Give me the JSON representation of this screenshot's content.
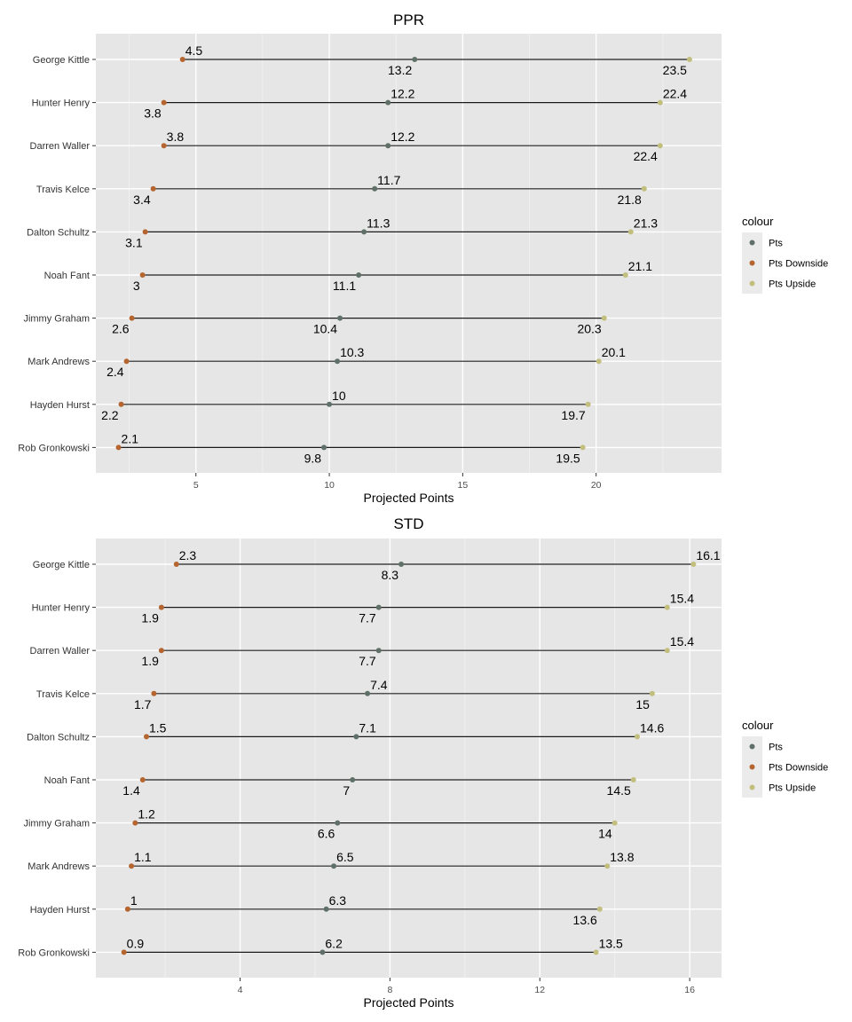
{
  "chart_data": [
    {
      "type": "dumbbell",
      "title": "PPR",
      "xlabel": "Projected Points",
      "ylabel": "",
      "xlim": [
        1.25,
        24.7
      ],
      "xticks": [
        5,
        10,
        15,
        20
      ],
      "grid": true,
      "legend_position": "right",
      "legend_title": "colour",
      "categories": [
        "George Kittle",
        "Hunter Henry",
        "Darren Waller",
        "Travis Kelce",
        "Dalton Schultz",
        "Noah Fant",
        "Jimmy Graham",
        "Mark Andrews",
        "Hayden Hurst",
        "Rob Gronkowski"
      ],
      "series": [
        {
          "name": "Pts",
          "color": "#5f7068",
          "values": [
            13.2,
            12.2,
            12.2,
            11.7,
            11.3,
            11.1,
            10.4,
            10.3,
            10.0,
            9.8
          ],
          "labels": [
            "13.2",
            "12.2",
            "12.2",
            "11.7",
            "11.3",
            "11.1",
            "10.4",
            "10.3",
            "10",
            "9.8"
          ],
          "label_side": [
            "below",
            "above",
            "above",
            "above",
            "above",
            "below",
            "below",
            "above",
            "above",
            "below"
          ]
        },
        {
          "name": "Pts Downside",
          "color": "#b5652f",
          "values": [
            4.5,
            3.8,
            3.8,
            3.4,
            3.1,
            3.0,
            2.6,
            2.4,
            2.2,
            2.1
          ],
          "labels": [
            "4.5",
            "3.8",
            "3.8",
            "3.4",
            "3.1",
            "3",
            "2.6",
            "2.4",
            "2.2",
            "2.1"
          ],
          "label_side": [
            "above",
            "below",
            "above",
            "below",
            "below",
            "below",
            "below",
            "below",
            "below",
            "above"
          ]
        },
        {
          "name": "Pts Upside",
          "color": "#c2bf7e",
          "values": [
            23.5,
            22.4,
            22.4,
            21.8,
            21.3,
            21.1,
            20.3,
            20.1,
            19.7,
            19.5
          ],
          "labels": [
            "23.5",
            "22.4",
            "22.4",
            "21.8",
            "21.3",
            "21.1",
            "20.3",
            "20.1",
            "19.7",
            "19.5"
          ],
          "label_side": [
            "below",
            "above",
            "below",
            "below",
            "above",
            "above",
            "below",
            "above",
            "below",
            "below"
          ]
        }
      ]
    },
    {
      "type": "dumbbell",
      "title": "STD",
      "xlabel": "Projected Points",
      "ylabel": "",
      "xlim": [
        0.15,
        16.85
      ],
      "xticks": [
        4,
        8,
        12,
        16
      ],
      "grid": true,
      "legend_position": "right",
      "legend_title": "colour",
      "categories": [
        "George Kittle",
        "Hunter Henry",
        "Darren Waller",
        "Travis Kelce",
        "Dalton Schultz",
        "Noah Fant",
        "Jimmy Graham",
        "Mark Andrews",
        "Hayden Hurst",
        "Rob Gronkowski"
      ],
      "series": [
        {
          "name": "Pts",
          "color": "#5f7068",
          "values": [
            8.3,
            7.7,
            7.7,
            7.4,
            7.1,
            7.0,
            6.6,
            6.5,
            6.3,
            6.2
          ],
          "labels": [
            "8.3",
            "7.7",
            "7.7",
            "7.4",
            "7.1",
            "7",
            "6.6",
            "6.5",
            "6.3",
            "6.2"
          ],
          "label_side": [
            "below",
            "below",
            "below",
            "above",
            "above",
            "below",
            "below",
            "above",
            "above",
            "above"
          ]
        },
        {
          "name": "Pts Downside",
          "color": "#b5652f",
          "values": [
            2.3,
            1.9,
            1.9,
            1.7,
            1.5,
            1.4,
            1.2,
            1.1,
            1.0,
            0.9
          ],
          "labels": [
            "2.3",
            "1.9",
            "1.9",
            "1.7",
            "1.5",
            "1.4",
            "1.2",
            "1.1",
            "1",
            "0.9"
          ],
          "label_side": [
            "above",
            "below",
            "below",
            "below",
            "above",
            "below",
            "above",
            "above",
            "above",
            "above"
          ]
        },
        {
          "name": "Pts Upside",
          "color": "#c2bf7e",
          "values": [
            16.1,
            15.4,
            15.4,
            15.0,
            14.6,
            14.5,
            14.0,
            13.8,
            13.6,
            13.5
          ],
          "labels": [
            "16.1",
            "15.4",
            "15.4",
            "15",
            "14.6",
            "14.5",
            "14",
            "13.8",
            "13.6",
            "13.5"
          ],
          "label_side": [
            "above",
            "above",
            "above",
            "below",
            "above",
            "below",
            "below",
            "above",
            "below",
            "above"
          ]
        }
      ]
    }
  ]
}
